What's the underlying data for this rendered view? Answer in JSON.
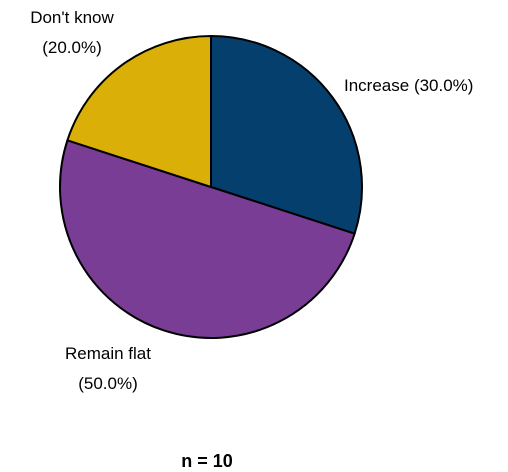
{
  "chart_data": {
    "type": "pie",
    "slices": [
      {
        "label": "Increase",
        "value": 30.0,
        "label_text": "(30.0%)",
        "color": "#053F6D"
      },
      {
        "label": "Remain flat",
        "value": 50.0,
        "label_text": "(50.0%)",
        "color": "#793D96"
      },
      {
        "label": "Don't know",
        "value": 20.0,
        "label_text": "(20.0%)",
        "color": "#DAAF07"
      }
    ],
    "start_angle": "12 o'clock",
    "direction": "clockwise",
    "footnote": "n = 10"
  }
}
